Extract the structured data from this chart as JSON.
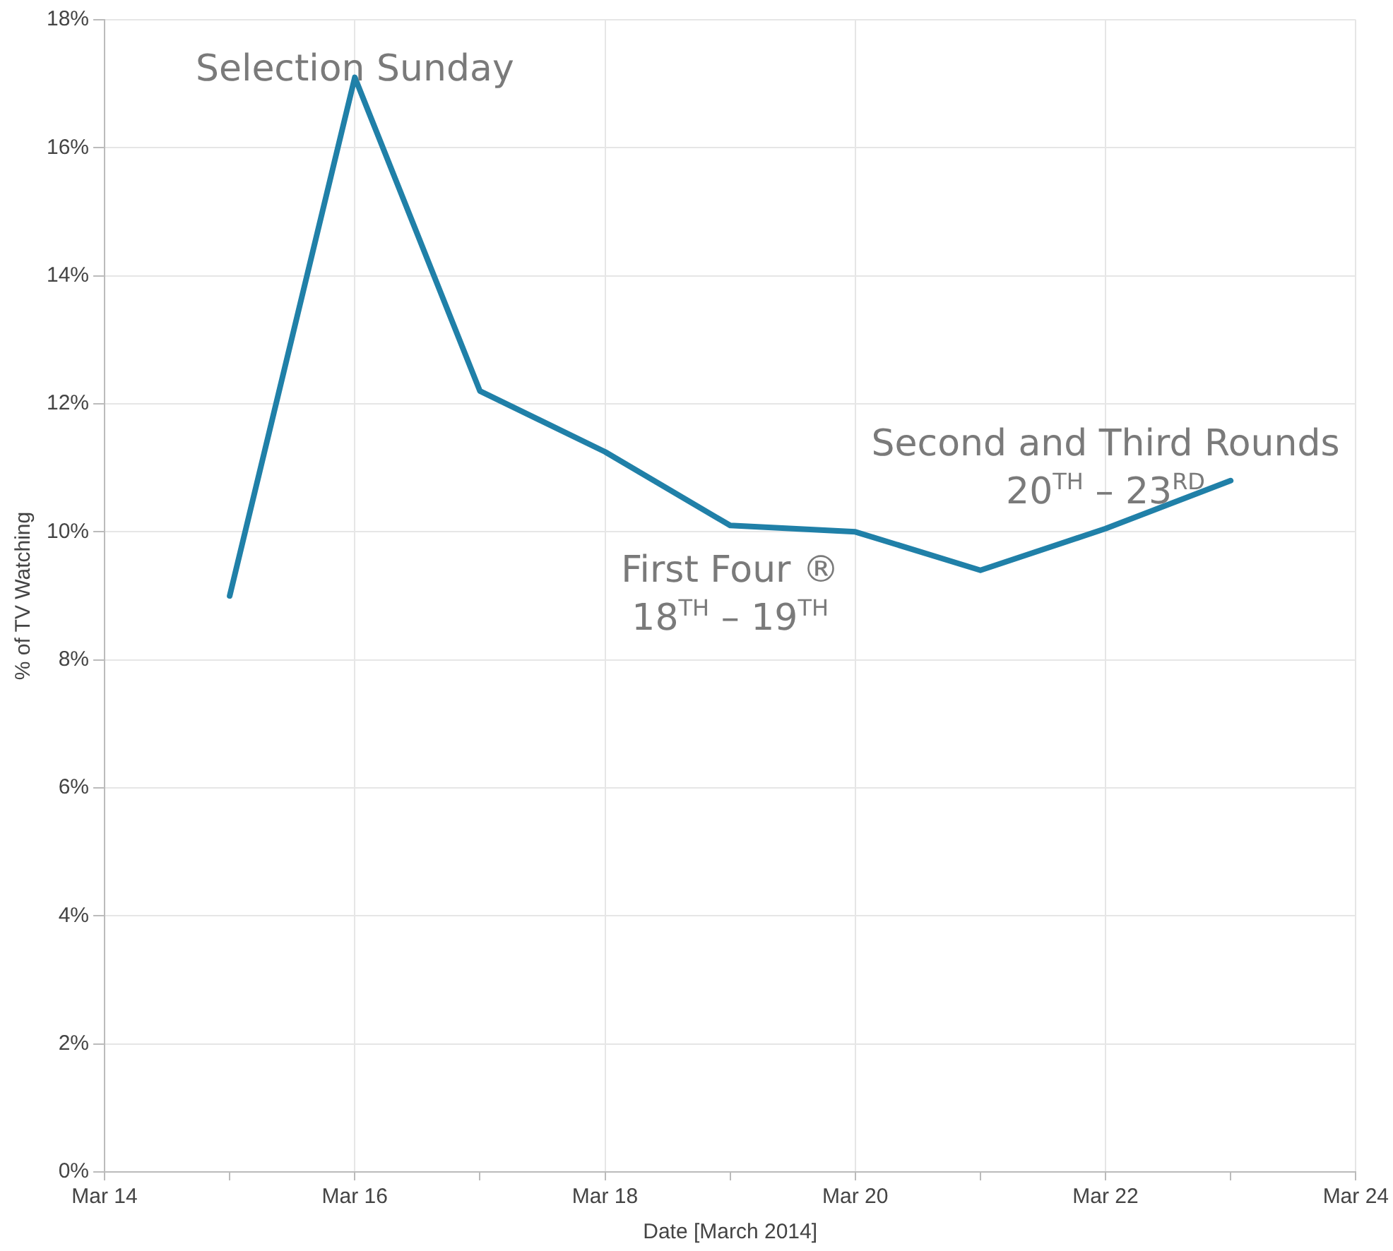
{
  "chart_data": {
    "type": "line",
    "xlabel": "Date [March 2014]",
    "ylabel": "% of TV Watching",
    "x": [
      "2014-03-15",
      "2014-03-16",
      "2014-03-17",
      "2014-03-18",
      "2014-03-19",
      "2014-03-20",
      "2014-03-21",
      "2014-03-22",
      "2014-03-23"
    ],
    "series": [
      {
        "color": "#2080a8",
        "values": [
          9.0,
          17.1,
          12.2,
          11.25,
          10.1,
          10.0,
          9.4,
          10.05,
          10.8
        ]
      }
    ],
    "xlim": [
      "2014-03-14",
      "2014-03-24"
    ],
    "xticks": [
      {
        "value": "2014-03-14",
        "label": "Mar 14"
      },
      {
        "value": "2014-03-15",
        "label": null
      },
      {
        "value": "2014-03-16",
        "label": "Mar 16"
      },
      {
        "value": "2014-03-17",
        "label": null
      },
      {
        "value": "2014-03-18",
        "label": "Mar 18"
      },
      {
        "value": "2014-03-19",
        "label": null
      },
      {
        "value": "2014-03-20",
        "label": "Mar 20"
      },
      {
        "value": "2014-03-21",
        "label": null
      },
      {
        "value": "2014-03-22",
        "label": "Mar 22"
      },
      {
        "value": "2014-03-23",
        "label": null
      },
      {
        "value": "2014-03-24",
        "label": "Mar 24"
      }
    ],
    "ylim": [
      0,
      18
    ],
    "yticks": [
      {
        "value": 0,
        "label": "0%"
      },
      {
        "value": 2,
        "label": "2%"
      },
      {
        "value": 4,
        "label": "4%"
      },
      {
        "value": 6,
        "label": "6%"
      },
      {
        "value": 8,
        "label": "8%"
      },
      {
        "value": 10,
        "label": "10%"
      },
      {
        "value": 12,
        "label": "12%"
      },
      {
        "value": 14,
        "label": "14%"
      },
      {
        "value": 16,
        "label": "16%"
      },
      {
        "value": 18,
        "label": "18%"
      }
    ],
    "grid": true,
    "legend": false,
    "marker": "none",
    "line_style": "solid",
    "annotations": [
      {
        "text": "Selection Sunday",
        "x": "2014-03-16",
        "y": 17.1
      },
      {
        "text": "First Four ®\n18$^{TH}$ – 19$^{TH}$",
        "x": "2014-03-19",
        "y": 10.1
      },
      {
        "text": "Second and Third Rounds\n20$^{TH}$ – 23$^{RD}$",
        "x": "2014-03-22",
        "y": 10.05
      }
    ]
  }
}
